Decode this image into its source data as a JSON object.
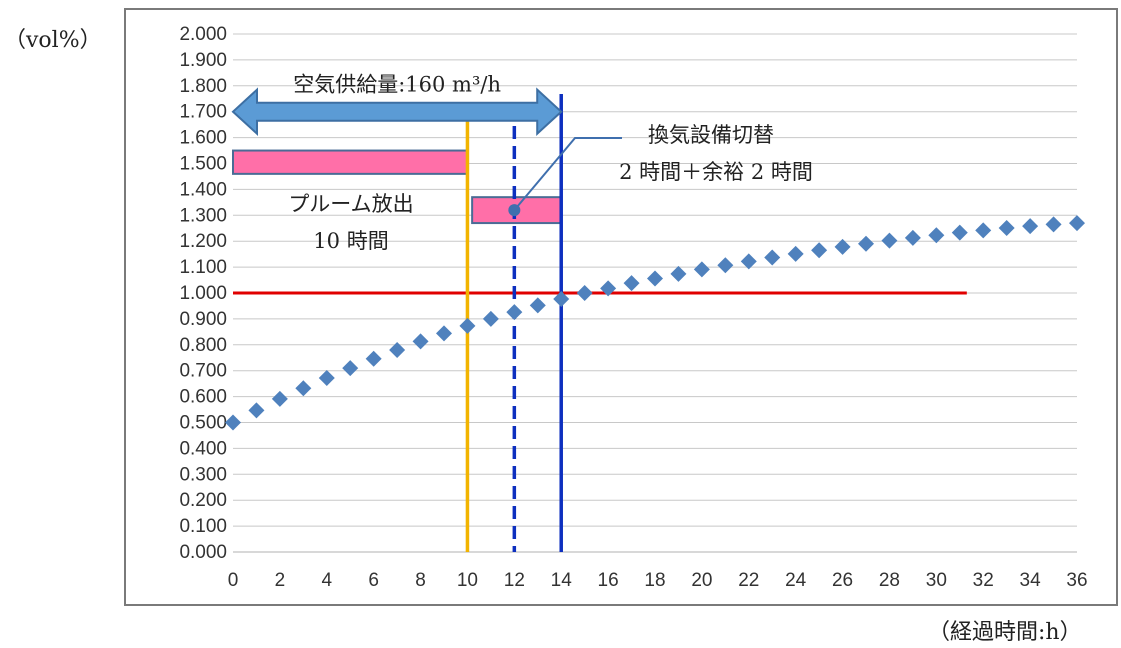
{
  "chart_data": {
    "type": "scatter",
    "ylabel": "（vol%）",
    "xlabel": "（経過時間:h）",
    "xlim": [
      0,
      36
    ],
    "ylim": [
      0,
      2.0
    ],
    "x_ticks": [
      0,
      2,
      4,
      6,
      8,
      10,
      12,
      14,
      16,
      18,
      20,
      22,
      24,
      26,
      28,
      30,
      32,
      34,
      36
    ],
    "y_ticks": [
      "0.000",
      "0.100",
      "0.200",
      "0.300",
      "0.400",
      "0.500",
      "0.600",
      "0.700",
      "0.800",
      "0.900",
      "1.000",
      "1.100",
      "1.200",
      "1.300",
      "1.400",
      "1.500",
      "1.600",
      "1.700",
      "1.800",
      "1.900",
      "2.000"
    ],
    "grid": "horizontal",
    "series": [
      {
        "color": "#4f81bd",
        "marker": "diamond",
        "x": [
          0,
          1,
          2,
          3,
          4,
          5,
          6,
          7,
          8,
          9,
          10,
          11,
          12,
          13,
          14,
          15,
          16,
          17,
          18,
          19,
          20,
          21,
          22,
          23,
          24,
          25,
          26,
          27,
          28,
          29,
          30,
          31,
          32,
          33,
          34,
          35,
          36
        ],
        "y": [
          0.5,
          0.547,
          0.591,
          0.632,
          0.672,
          0.71,
          0.746,
          0.78,
          0.813,
          0.844,
          0.873,
          0.9,
          0.926,
          0.952,
          0.977,
          1.0,
          1.018,
          1.038,
          1.056,
          1.074,
          1.091,
          1.107,
          1.122,
          1.137,
          1.151,
          1.165,
          1.178,
          1.19,
          1.202,
          1.213,
          1.223,
          1.233,
          1.242,
          1.251,
          1.258,
          1.265,
          1.27
        ]
      }
    ],
    "reference_lines": [
      {
        "orientation": "horizontal",
        "y": 1.0,
        "x_end": 31.3,
        "color": "#e00000",
        "style": "solid"
      },
      {
        "orientation": "vertical",
        "x": 10,
        "color": "#f2b400",
        "style": "solid"
      },
      {
        "orientation": "vertical",
        "x": 12,
        "color": "#0d2fbf",
        "style": "dashed"
      },
      {
        "orientation": "vertical",
        "x": 14,
        "color": "#0d2fbf",
        "style": "solid"
      }
    ],
    "bars": [
      {
        "x0": 0,
        "x1": 10,
        "y0": 1.46,
        "y1": 1.55,
        "color": "#ff6fa8"
      },
      {
        "x0": 10.2,
        "x1": 14,
        "y0": 1.27,
        "y1": 1.37,
        "color": "#ff6fa8"
      }
    ],
    "arrow": {
      "x0": 0,
      "x1": 14,
      "y": 1.7,
      "color": "#5b9bd5",
      "label": "空気供給量:160 m³/h"
    },
    "annotations": [
      {
        "lines": [
          "プルーム放出",
          "10 時間"
        ]
      },
      {
        "lines": [
          "換気設備切替",
          "2 時間＋余裕 2 時間"
        ],
        "point": {
          "x": 12,
          "y": 1.32
        }
      }
    ]
  }
}
